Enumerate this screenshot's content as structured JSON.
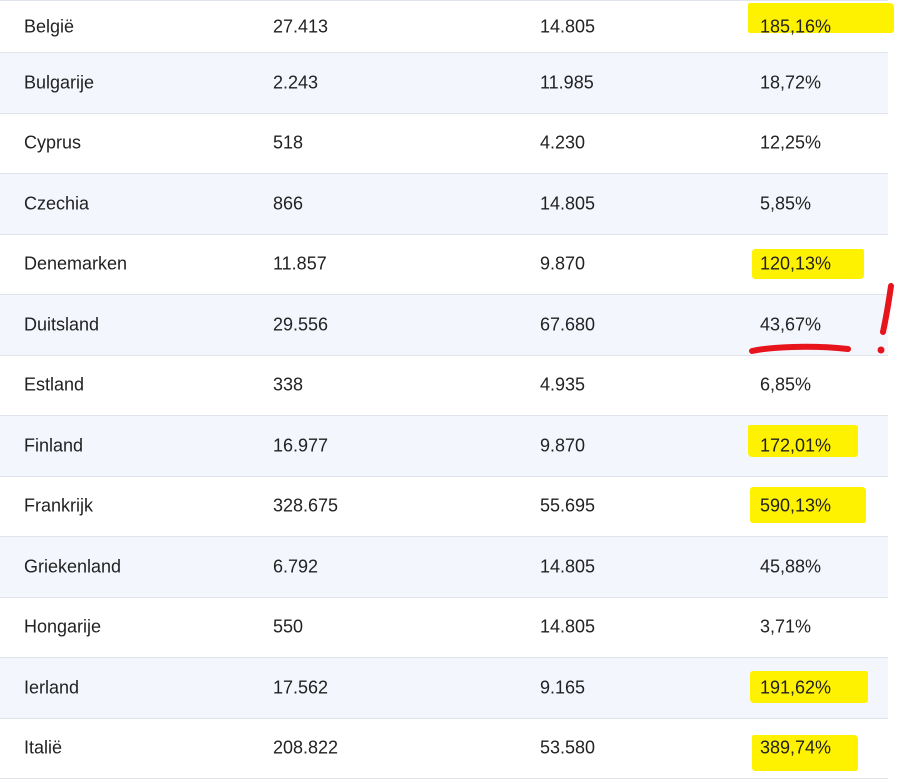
{
  "colors": {
    "highlight": "#fff200",
    "annotation": "#e8141c",
    "row_shade": "#f3f6fd"
  },
  "rows": [
    {
      "country": "België",
      "col1": "27.413",
      "col2": "14.805",
      "pct": "185,16%",
      "highlighted": true
    },
    {
      "country": "Bulgarije",
      "col1": "2.243",
      "col2": "11.985",
      "pct": "18,72%",
      "highlighted": false
    },
    {
      "country": "Cyprus",
      "col1": "518",
      "col2": "4.230",
      "pct": "12,25%",
      "highlighted": false
    },
    {
      "country": "Czechia",
      "col1": "866",
      "col2": "14.805",
      "pct": "5,85%",
      "highlighted": false
    },
    {
      "country": "Denemarken",
      "col1": "11.857",
      "col2": "9.870",
      "pct": "120,13%",
      "highlighted": true
    },
    {
      "country": "Duitsland",
      "col1": "29.556",
      "col2": "67.680",
      "pct": "43,67%",
      "highlighted": false,
      "annotated": true
    },
    {
      "country": "Estland",
      "col1": "338",
      "col2": "4.935",
      "pct": "6,85%",
      "highlighted": false
    },
    {
      "country": "Finland",
      "col1": "16.977",
      "col2": "9.870",
      "pct": "172,01%",
      "highlighted": true
    },
    {
      "country": "Frankrijk",
      "col1": "328.675",
      "col2": "55.695",
      "pct": "590,13%",
      "highlighted": true
    },
    {
      "country": "Griekenland",
      "col1": "6.792",
      "col2": "14.805",
      "pct": "45,88%",
      "highlighted": false
    },
    {
      "country": "Hongarije",
      "col1": "550",
      "col2": "14.805",
      "pct": "3,71%",
      "highlighted": false
    },
    {
      "country": "Ierland",
      "col1": "17.562",
      "col2": "9.165",
      "pct": "191,62%",
      "highlighted": true
    },
    {
      "country": "Italië",
      "col1": "208.822",
      "col2": "53.580",
      "pct": "389,74%",
      "highlighted": true
    }
  ]
}
